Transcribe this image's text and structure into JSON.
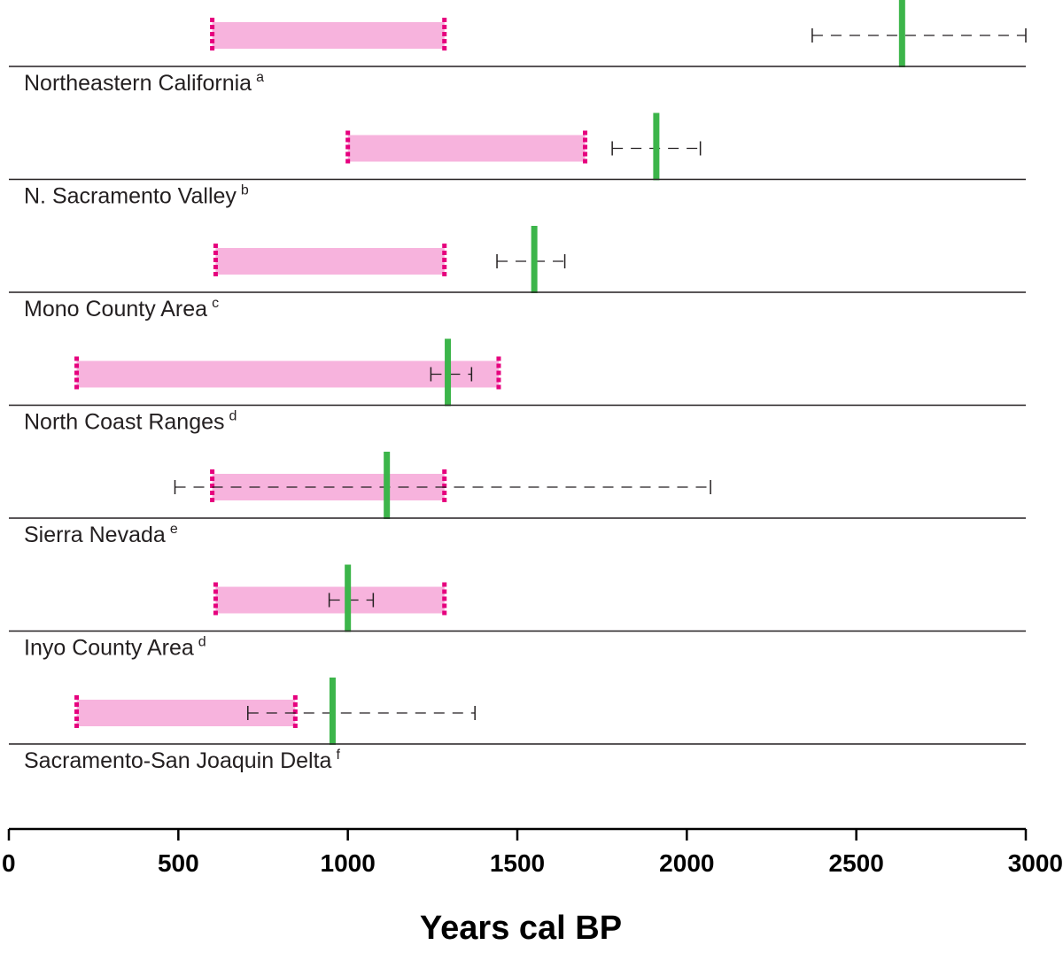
{
  "chart_data": {
    "type": "range",
    "title": "",
    "xlabel": "Years cal BP",
    "ylabel": "",
    "xlim": [
      0,
      3000
    ],
    "ticks": [
      0,
      500,
      1000,
      1500,
      2000,
      2500,
      3000
    ],
    "tick_labels": [
      "0",
      "500",
      "1000",
      "1500",
      "2000",
      "2500",
      "3000"
    ],
    "grid": false,
    "legend": null,
    "colors": {
      "range_fill": "#f7b3dd",
      "range_edge": "#e6007e",
      "estimate_line": "#3cb54a",
      "interval_line": "#231f20",
      "row_rule": "#231f20"
    },
    "series": [
      {
        "name": "Northeastern California",
        "footnote": "a",
        "range": [
          600,
          1285
        ],
        "estimate": 2635,
        "interval": [
          2370,
          3000
        ]
      },
      {
        "name": "N. Sacramento Valley",
        "footnote": "b",
        "range": [
          1000,
          1700
        ],
        "estimate": 1910,
        "interval": [
          1780,
          2040
        ]
      },
      {
        "name": "Mono County Area",
        "footnote": "c",
        "range": [
          610,
          1285
        ],
        "estimate": 1550,
        "interval": [
          1440,
          1640
        ]
      },
      {
        "name": "North Coast Ranges",
        "footnote": "d",
        "range": [
          200,
          1445
        ],
        "estimate": 1295,
        "interval": [
          1245,
          1365
        ]
      },
      {
        "name": "Sierra Nevada",
        "footnote": "e",
        "range": [
          600,
          1285
        ],
        "estimate": 1115,
        "interval": [
          490,
          2070
        ]
      },
      {
        "name": "Inyo County Area",
        "footnote": "d",
        "range": [
          610,
          1285
        ],
        "estimate": 1000,
        "interval": [
          945,
          1075
        ]
      },
      {
        "name": "Sacramento-San Joaquin Delta",
        "footnote": "f",
        "range": [
          200,
          845
        ],
        "estimate": 955,
        "interval": [
          705,
          1375
        ]
      }
    ]
  }
}
